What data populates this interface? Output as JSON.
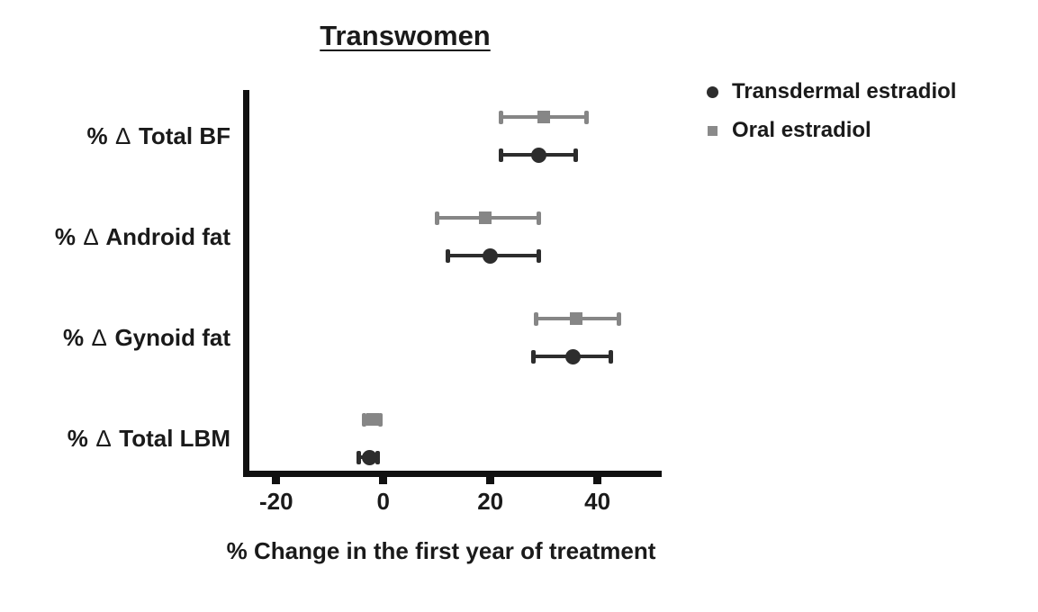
{
  "title": "Transwomen",
  "legend": {
    "items": [
      {
        "label": "Transdermal estradiol",
        "marker": "circle-icon",
        "color": "#2d2d2d"
      },
      {
        "label": "Oral estradiol",
        "marker": "square-icon",
        "color": "#8a8a8a"
      }
    ]
  },
  "chart_data": {
    "type": "scatter",
    "subtype": "horizontal-point-range (mean with error bars)",
    "title": "Transwomen",
    "xlabel": "% Change in the first year of treatment",
    "xlim": [
      -25,
      52
    ],
    "xticks": [
      -20,
      0,
      20,
      40
    ],
    "grid": false,
    "legend_position": "top-right",
    "categories": [
      "% ∆ Total BF",
      "% ∆ Android fat",
      "% ∆ Gynoid fat",
      "% ∆ Total LBM"
    ],
    "series": [
      {
        "name": "Oral estradiol",
        "marker": "square",
        "color": "#868686",
        "values": [
          30,
          19,
          36,
          -2
        ],
        "ci_low": [
          22,
          10,
          28.5,
          -3.5
        ],
        "ci_high": [
          38,
          29,
          44,
          -0.5
        ]
      },
      {
        "name": "Transdermal estradiol",
        "marker": "circle",
        "color": "#2d2d2d",
        "values": [
          29,
          20,
          35.5,
          -2.5
        ],
        "ci_low": [
          22,
          12,
          28,
          -4.5
        ],
        "ci_high": [
          36,
          29,
          42.5,
          -1
        ]
      }
    ]
  }
}
